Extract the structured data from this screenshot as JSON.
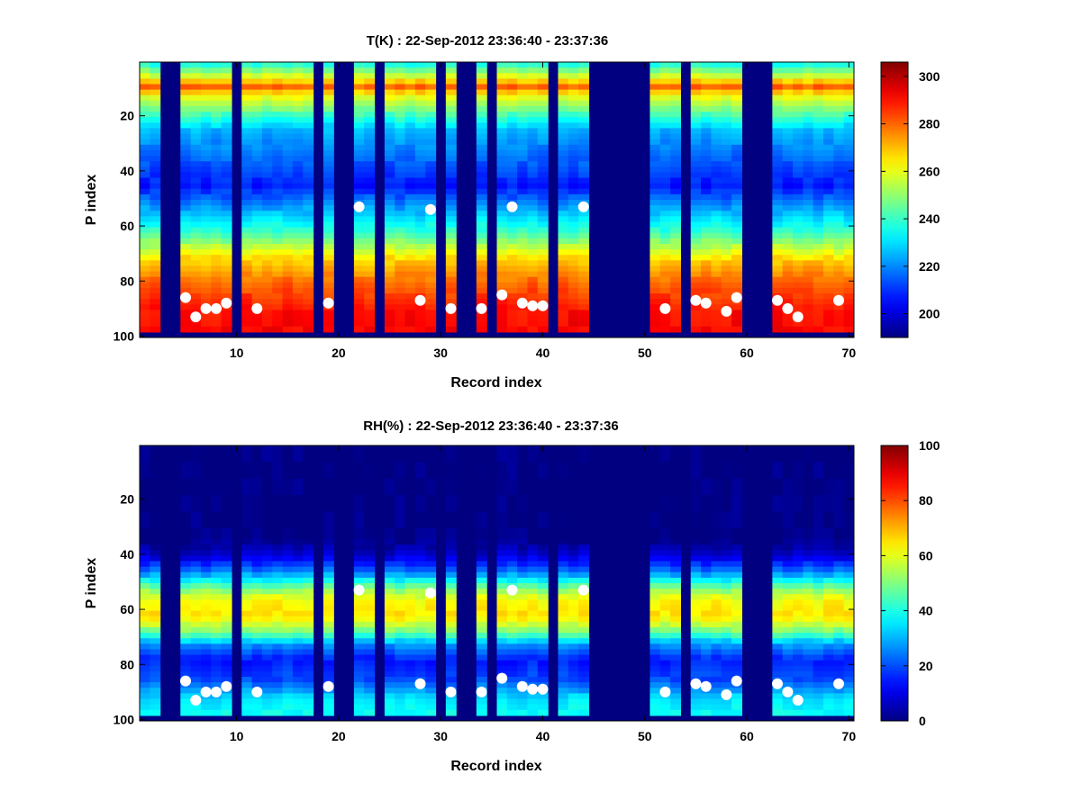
{
  "chart_data": [
    {
      "type": "heatmap",
      "title": "T(K) : 22-Sep-2012 23:36:40 - 23:37:36",
      "xlabel": "Record index",
      "ylabel": "P index",
      "xlim": [
        1,
        70
      ],
      "ylim": [
        100,
        1
      ],
      "x_ticks": [
        "10",
        "20",
        "30",
        "40",
        "50",
        "60",
        "70"
      ],
      "y_ticks": [
        "20",
        "40",
        "60",
        "80",
        "100"
      ],
      "colorbar": {
        "range": [
          190,
          306
        ],
        "ticks": [
          "200",
          "220",
          "240",
          "260",
          "280",
          "300"
        ]
      },
      "colormap": "jet",
      "missing_records": [
        3,
        4,
        10,
        18,
        20,
        21,
        24,
        30,
        32,
        33,
        35,
        41,
        45,
        46,
        47,
        48,
        49,
        50,
        54,
        60,
        61,
        62
      ],
      "profile": {
        "p": [
          1,
          6,
          9,
          12,
          25,
          45,
          62,
          72,
          80,
          90,
          100
        ],
        "value": [
          238,
          262,
          280,
          262,
          225,
          207,
          240,
          268,
          280,
          290,
          292
        ]
      },
      "markers": [
        {
          "record": 5,
          "p": 86
        },
        {
          "record": 6,
          "p": 93
        },
        {
          "record": 7,
          "p": 90
        },
        {
          "record": 8,
          "p": 90
        },
        {
          "record": 9,
          "p": 88
        },
        {
          "record": 12,
          "p": 90
        },
        {
          "record": 19,
          "p": 88
        },
        {
          "record": 22,
          "p": 53
        },
        {
          "record": 28,
          "p": 87
        },
        {
          "record": 29,
          "p": 54
        },
        {
          "record": 31,
          "p": 90
        },
        {
          "record": 34,
          "p": 90
        },
        {
          "record": 36,
          "p": 85
        },
        {
          "record": 37,
          "p": 53
        },
        {
          "record": 38,
          "p": 88
        },
        {
          "record": 39,
          "p": 89
        },
        {
          "record": 40,
          "p": 89
        },
        {
          "record": 44,
          "p": 53
        },
        {
          "record": 52,
          "p": 90
        },
        {
          "record": 55,
          "p": 87
        },
        {
          "record": 56,
          "p": 88
        },
        {
          "record": 58,
          "p": 91
        },
        {
          "record": 59,
          "p": 86
        },
        {
          "record": 63,
          "p": 87
        },
        {
          "record": 64,
          "p": 90
        },
        {
          "record": 65,
          "p": 93
        },
        {
          "record": 69,
          "p": 87
        }
      ]
    },
    {
      "type": "heatmap",
      "title": "RH(%) : 22-Sep-2012 23:36:40 - 23:37:36",
      "xlabel": "Record index",
      "ylabel": "P index",
      "xlim": [
        1,
        70
      ],
      "ylim": [
        100,
        1
      ],
      "x_ticks": [
        "10",
        "20",
        "30",
        "40",
        "50",
        "60",
        "70"
      ],
      "y_ticks": [
        "20",
        "40",
        "60",
        "80",
        "100"
      ],
      "colorbar": {
        "range": [
          0,
          100
        ],
        "ticks": [
          "0",
          "20",
          "40",
          "60",
          "80",
          "100"
        ]
      },
      "colormap": "jet",
      "missing_records": [
        3,
        4,
        10,
        18,
        20,
        21,
        24,
        30,
        32,
        33,
        35,
        41,
        45,
        46,
        47,
        48,
        49,
        50,
        54,
        60,
        61,
        62
      ],
      "profile": {
        "p": [
          1,
          34,
          40,
          46,
          52,
          56,
          62,
          68,
          72,
          78,
          85,
          92,
          100
        ],
        "value": [
          0,
          0,
          8,
          25,
          50,
          62,
          65,
          48,
          28,
          15,
          20,
          35,
          40
        ]
      },
      "markers": [
        {
          "record": 5,
          "p": 86
        },
        {
          "record": 6,
          "p": 93
        },
        {
          "record": 7,
          "p": 90
        },
        {
          "record": 8,
          "p": 90
        },
        {
          "record": 9,
          "p": 88
        },
        {
          "record": 12,
          "p": 90
        },
        {
          "record": 19,
          "p": 88
        },
        {
          "record": 22,
          "p": 53
        },
        {
          "record": 28,
          "p": 87
        },
        {
          "record": 29,
          "p": 54
        },
        {
          "record": 31,
          "p": 90
        },
        {
          "record": 34,
          "p": 90
        },
        {
          "record": 36,
          "p": 85
        },
        {
          "record": 37,
          "p": 53
        },
        {
          "record": 38,
          "p": 88
        },
        {
          "record": 39,
          "p": 89
        },
        {
          "record": 40,
          "p": 89
        },
        {
          "record": 44,
          "p": 53
        },
        {
          "record": 52,
          "p": 90
        },
        {
          "record": 55,
          "p": 87
        },
        {
          "record": 56,
          "p": 88
        },
        {
          "record": 58,
          "p": 91
        },
        {
          "record": 59,
          "p": 86
        },
        {
          "record": 63,
          "p": 87
        },
        {
          "record": 64,
          "p": 90
        },
        {
          "record": 65,
          "p": 93
        },
        {
          "record": 69,
          "p": 87
        }
      ]
    }
  ]
}
